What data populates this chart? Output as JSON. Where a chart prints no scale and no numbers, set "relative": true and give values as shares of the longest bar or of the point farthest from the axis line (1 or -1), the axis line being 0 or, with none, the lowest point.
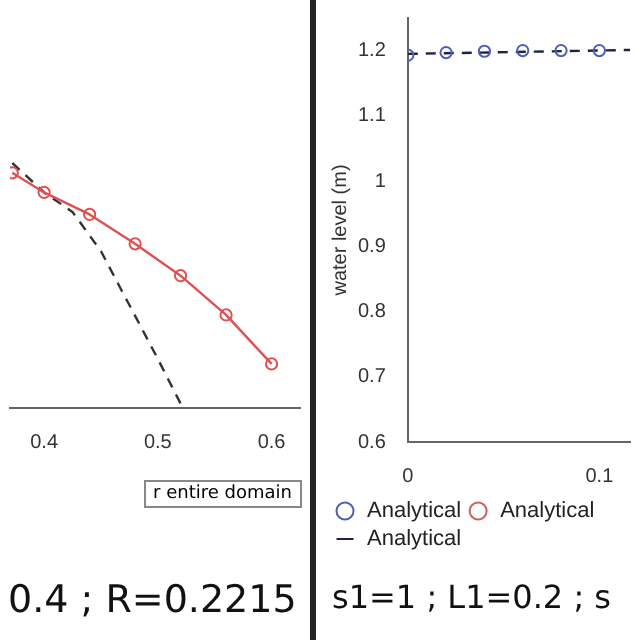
{
  "chart_data": [
    {
      "type": "line",
      "relative": true,
      "x": [
        0.372,
        0.4,
        0.44,
        0.48,
        0.52,
        0.56,
        0.6
      ],
      "xlim": [
        0.37,
        0.625
      ],
      "xticks": [
        0.4,
        0.5,
        0.6
      ],
      "legend": false,
      "grid": false,
      "series": [
        {
          "color": "#e05050",
          "marker": "circle",
          "line_style": "solid",
          "values": [
            0.96,
            0.88,
            0.79,
            0.67,
            0.54,
            0.38,
            0.18
          ]
        },
        {
          "color": "#333333",
          "marker": "none",
          "line_style": "dashed",
          "x": [
            0.372,
            0.4,
            0.425,
            0.45,
            0.467,
            0.483,
            0.5,
            0.522
          ],
          "values": [
            1.0,
            0.88,
            0.8,
            0.64,
            0.49,
            0.35,
            0.2,
            0
          ]
        }
      ],
      "annotations": [
        "r entire domain",
        "0.4 ; R=0.2215"
      ]
    },
    {
      "type": "line",
      "ylabel": "water level (m)",
      "x": [
        0,
        0.02,
        0.04,
        0.06,
        0.08,
        0.1
      ],
      "xlim": [
        0,
        0.116
      ],
      "xticks": [
        0,
        0.1
      ],
      "ylim": [
        0.6,
        1.25
      ],
      "yticks": [
        0.6,
        0.7,
        0.8,
        0.9,
        1.0,
        1.1,
        1.2
      ],
      "legend": "bottom",
      "grid": false,
      "series": [
        {
          "name": "Analytical",
          "type": "scatter",
          "color": "#5060b0",
          "marker": "circle",
          "values": [
            1.193,
            1.197,
            1.199,
            1.2,
            1.2,
            1.2
          ]
        },
        {
          "name": "Analytical",
          "type": "scatter",
          "color": "#d06060",
          "marker": "circle",
          "values": [
            null,
            null,
            null,
            null,
            null,
            null
          ]
        },
        {
          "name": "Analytical",
          "type": "line",
          "color": "#222244",
          "marker": "none",
          "line_style": "dashed",
          "x": [
            0,
            0.116
          ],
          "values": [
            1.195,
            1.201
          ]
        }
      ],
      "annotations": [
        "s1=1 ; L1=0.2 ; s"
      ]
    }
  ]
}
